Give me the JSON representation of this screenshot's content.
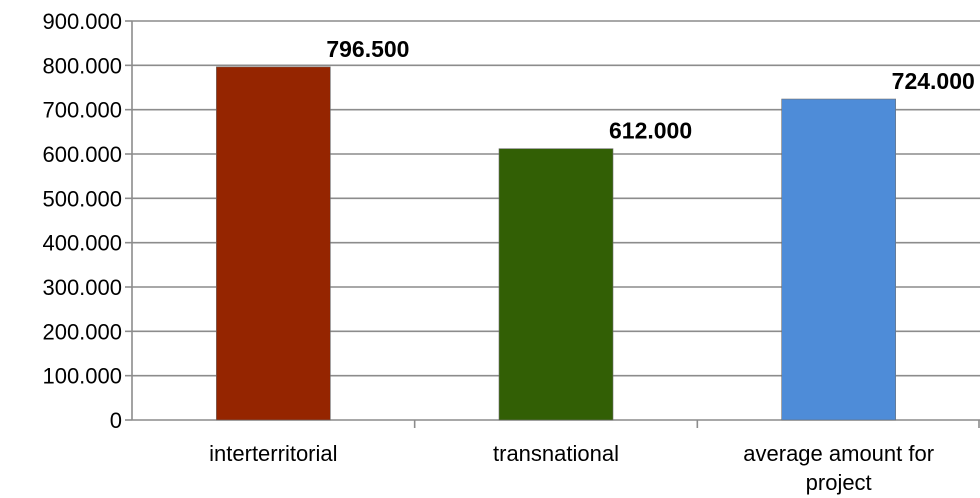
{
  "chart_data": {
    "type": "bar",
    "categories": [
      "interterritorial",
      "transnational",
      "average amount for project"
    ],
    "category_lines": [
      [
        "interterritorial"
      ],
      [
        "transnational"
      ],
      [
        "average amount for",
        "project"
      ]
    ],
    "values": [
      796500,
      612000,
      724000
    ],
    "data_labels": [
      "796.500",
      "612.000",
      "724.000"
    ],
    "bar_colors": [
      "#952500",
      "#325F05",
      "#4E8CD8"
    ],
    "title": "",
    "xlabel": "",
    "ylabel": "",
    "ylim": [
      0,
      900000
    ],
    "yticks": [
      0,
      100000,
      200000,
      300000,
      400000,
      500000,
      600000,
      700000,
      800000,
      900000
    ],
    "ytick_labels": [
      "0",
      "100.000",
      "200.000",
      "300.000",
      "400.000",
      "500.000",
      "600.000",
      "700.000",
      "800.000",
      "900.000"
    ],
    "grid": true,
    "legend": "none"
  }
}
